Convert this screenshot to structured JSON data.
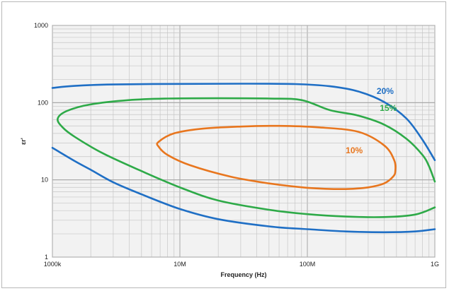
{
  "chart_data": {
    "type": "line",
    "title": "",
    "xlabel": "Frequency (Hz)",
    "ylabel": "εr'",
    "x_scale": "log",
    "y_scale": "log",
    "xlim": [
      1000000,
      1000000000
    ],
    "ylim": [
      1,
      1000
    ],
    "grid": true,
    "legend": "none (series labelled inline)",
    "x_ticks": [
      {
        "value": 1000000,
        "label": "1000k"
      },
      {
        "value": 10000000,
        "label": "10M"
      },
      {
        "value": 100000000,
        "label": "100M"
      },
      {
        "value": 1000000000,
        "label": "1G"
      }
    ],
    "y_ticks": [
      {
        "value": 1,
        "label": "1"
      },
      {
        "value": 10,
        "label": "10"
      },
      {
        "value": 100,
        "label": "100"
      },
      {
        "value": 1000,
        "label": "1000"
      }
    ],
    "series": [
      {
        "name": "20%",
        "color": "#1f6fc5",
        "closed": false,
        "segments": [
          [
            [
              1000000,
              155
            ],
            [
              1500000,
              165
            ],
            [
              3000000,
              172
            ],
            [
              10000000,
              175
            ],
            [
              30000000,
              176
            ],
            [
              80000000,
              174
            ],
            [
              150000000,
              163
            ],
            [
              250000000,
              140
            ],
            [
              400000000,
              102
            ],
            [
              600000000,
              62
            ],
            [
              800000000,
              33
            ],
            [
              1000000000,
              18
            ]
          ],
          [
            [
              1000000,
              26
            ],
            [
              1500000,
              17.5
            ],
            [
              2000000,
              13.5
            ],
            [
              3000000,
              9.3
            ],
            [
              5000000,
              6.5
            ],
            [
              10000000,
              4.2
            ],
            [
              20000000,
              3.1
            ],
            [
              50000000,
              2.5
            ],
            [
              100000000,
              2.3
            ],
            [
              200000000,
              2.15
            ],
            [
              400000000,
              2.1
            ],
            [
              700000000,
              2.15
            ],
            [
              1000000000,
              2.3
            ]
          ]
        ],
        "label_at": [
          350000000,
          130
        ]
      },
      {
        "name": "15%",
        "color": "#2eaa48",
        "closed": false,
        "segments": [
          [
            [
              1000000000,
              9.5
            ],
            [
              900000000,
              15
            ],
            [
              800000000,
              21
            ],
            [
              600000000,
              34
            ],
            [
              400000000,
              52
            ],
            [
              250000000,
              68
            ],
            [
              150000000,
              80
            ],
            [
              90000000,
              108
            ],
            [
              50000000,
              113
            ],
            [
              20000000,
              114
            ],
            [
              8000000,
              113
            ],
            [
              4000000,
              108
            ],
            [
              2000000,
              95
            ],
            [
              1300000,
              78
            ],
            [
              1100000,
              62
            ],
            [
              1200000,
              48
            ],
            [
              1500000,
              36
            ],
            [
              2500000,
              22
            ],
            [
              5000000,
              13
            ],
            [
              10000000,
              8
            ],
            [
              20000000,
              5.4
            ],
            [
              50000000,
              4.1
            ],
            [
              100000000,
              3.6
            ],
            [
              200000000,
              3.35
            ],
            [
              400000000,
              3.3
            ],
            [
              700000000,
              3.55
            ],
            [
              1000000000,
              4.4
            ]
          ]
        ],
        "label_at": [
          370000000,
          78
        ]
      },
      {
        "name": "10%",
        "color": "#e8761e",
        "closed": true,
        "segments": [
          [
            [
              6800000,
              31
            ],
            [
              9000000,
              40
            ],
            [
              15000000,
              46
            ],
            [
              30000000,
              49
            ],
            [
              60000000,
              50
            ],
            [
              120000000,
              48
            ],
            [
              250000000,
              42
            ],
            [
              400000000,
              28
            ],
            [
              480000000,
              18
            ],
            [
              490000000,
              13
            ],
            [
              470000000,
              11
            ],
            [
              400000000,
              9
            ],
            [
              300000000,
              8
            ],
            [
              200000000,
              7.6
            ],
            [
              100000000,
              7.9
            ],
            [
              50000000,
              9
            ],
            [
              25000000,
              11
            ],
            [
              12000000,
              15.5
            ],
            [
              8000000,
              21
            ],
            [
              6800000,
              27
            ],
            [
              6800000,
              31
            ]
          ]
        ],
        "label_at": [
          200000000,
          22
        ]
      }
    ]
  }
}
